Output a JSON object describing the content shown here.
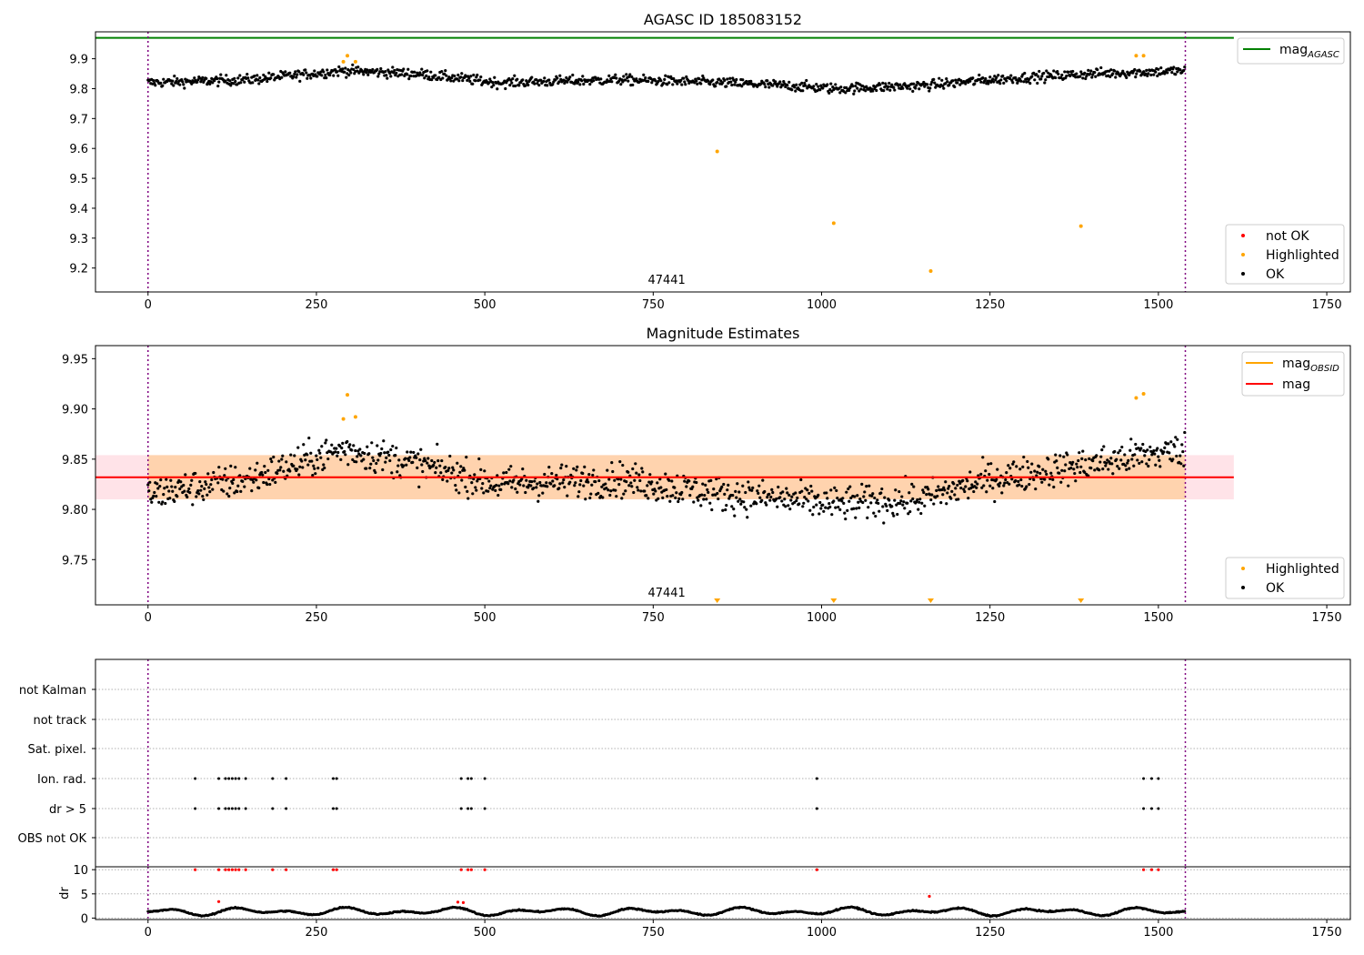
{
  "chart_data": [
    {
      "type": "scatter",
      "title": "AGASC ID 185083152",
      "annotation": "47441",
      "xlim": [
        -78,
        1785
      ],
      "ylim": [
        9.12,
        9.99
      ],
      "xticks": [
        "0",
        "250",
        "500",
        "750",
        "1000",
        "1250",
        "1500",
        "1750"
      ],
      "xtick_values": [
        0,
        250,
        500,
        750,
        1000,
        1250,
        1500,
        1750
      ],
      "yticks": [
        "9.2",
        "9.3",
        "9.4",
        "9.5",
        "9.6",
        "9.7",
        "9.8",
        "9.9"
      ],
      "ytick_values": [
        9.2,
        9.3,
        9.4,
        9.5,
        9.6,
        9.7,
        9.8,
        9.9
      ],
      "vlines": [
        0,
        1540
      ],
      "hline": {
        "y": 9.97,
        "x_end": 1612,
        "color": "#008000"
      },
      "line_legend": [
        {
          "label": "mag",
          "sub": "AGASC",
          "color": "#008000"
        }
      ],
      "scatter_legend": [
        {
          "label": "not OK",
          "color": "#ff0000"
        },
        {
          "label": "Highlighted",
          "color": "#ffa500"
        },
        {
          "label": "OK",
          "color": "#000000"
        }
      ],
      "series": [
        {
          "name": "OK",
          "color": "#000000",
          "trend": [
            [
              0,
              9.82
            ],
            [
              150,
              9.83
            ],
            [
              290,
              9.86
            ],
            [
              400,
              9.85
            ],
            [
              520,
              9.82
            ],
            [
              700,
              9.83
            ],
            [
              850,
              9.82
            ],
            [
              950,
              9.81
            ],
            [
              1020,
              9.8
            ],
            [
              1150,
              9.81
            ],
            [
              1250,
              9.83
            ],
            [
              1400,
              9.85
            ],
            [
              1540,
              9.86
            ]
          ],
          "spread": 0.04
        },
        {
          "name": "Highlighted",
          "color": "#ffa500",
          "points": [
            [
              290,
              9.89
            ],
            [
              296,
              9.91
            ],
            [
              308,
              9.89
            ],
            [
              845,
              9.59
            ],
            [
              1018,
              9.35
            ],
            [
              1162,
              9.19
            ],
            [
              1385,
              9.34
            ],
            [
              1467,
              9.91
            ],
            [
              1478,
              9.91
            ]
          ]
        },
        {
          "name": "not OK",
          "color": "#ff0000",
          "points": []
        }
      ]
    },
    {
      "type": "scatter",
      "title": "Magnitude Estimates",
      "annotation": "47441",
      "xlim": [
        -78,
        1785
      ],
      "ylim": [
        9.705,
        9.963
      ],
      "xticks": [
        "0",
        "250",
        "500",
        "750",
        "1000",
        "1250",
        "1500",
        "1750"
      ],
      "xtick_values": [
        0,
        250,
        500,
        750,
        1000,
        1250,
        1500,
        1750
      ],
      "yticks": [
        "9.75",
        "9.80",
        "9.85",
        "9.90",
        "9.95"
      ],
      "ytick_values": [
        9.75,
        9.8,
        9.85,
        9.9,
        9.95
      ],
      "vlines": [
        0,
        1540
      ],
      "mag": 9.832,
      "mag_band": [
        9.81,
        9.854
      ],
      "mag_x_end": 1612,
      "line_legend": [
        {
          "label": "mag",
          "sub": "OBSID",
          "color": "#ffa500"
        },
        {
          "label": "mag",
          "sub": "",
          "color": "#ff0000"
        }
      ],
      "scatter_legend": [
        {
          "label": "Highlighted",
          "color": "#ffa500"
        },
        {
          "label": "OK",
          "color": "#000000"
        }
      ],
      "series": [
        {
          "name": "OK",
          "color": "#000000",
          "trend": [
            [
              0,
              9.815
            ],
            [
              150,
              9.83
            ],
            [
              290,
              9.86
            ],
            [
              400,
              9.845
            ],
            [
              520,
              9.825
            ],
            [
              700,
              9.83
            ],
            [
              850,
              9.815
            ],
            [
              950,
              9.81
            ],
            [
              1020,
              9.805
            ],
            [
              1150,
              9.81
            ],
            [
              1250,
              9.83
            ],
            [
              1400,
              9.845
            ],
            [
              1540,
              9.86
            ]
          ],
          "spread": 0.04
        },
        {
          "name": "Highlighted",
          "color": "#ffa500",
          "points": [
            [
              290,
              9.89
            ],
            [
              296,
              9.914
            ],
            [
              308,
              9.892
            ],
            [
              1467,
              9.911
            ],
            [
              1478,
              9.915
            ]
          ]
        }
      ],
      "offscale_low_markers": [
        845,
        1018,
        1162,
        1385
      ]
    },
    {
      "type": "scatter",
      "title": "",
      "xlim": [
        -78,
        1785
      ],
      "vlines": [
        0,
        1540
      ],
      "flag_rows": [
        "not Kalman",
        "not track",
        "Sat. pixel.",
        "Ion. rad.",
        "dr > 5",
        "OBS not OK"
      ],
      "flag_points": {
        "not Kalman": [],
        "not track": [],
        "Sat. pixel.": [],
        "Ion. rad.": [
          70,
          105,
          115,
          120,
          125,
          130,
          135,
          145,
          185,
          205,
          275,
          280,
          465,
          475,
          480,
          500,
          993,
          1478,
          1490,
          1500
        ],
        "dr > 5": [
          70,
          105,
          115,
          120,
          125,
          130,
          135,
          145,
          185,
          205,
          275,
          280,
          465,
          475,
          480,
          500,
          993,
          1478,
          1490,
          1500
        ],
        "OBS not OK": []
      }
    },
    {
      "type": "scatter",
      "title": "",
      "ylabel": "dr",
      "xlim": [
        -78,
        1785
      ],
      "ylim": [
        -0.3,
        10.6
      ],
      "xticks": [
        "0",
        "250",
        "500",
        "750",
        "1000",
        "1250",
        "1500",
        "1750"
      ],
      "xtick_values": [
        0,
        250,
        500,
        750,
        1000,
        1250,
        1500,
        1750
      ],
      "yticks": [
        "0",
        "5",
        "10"
      ],
      "ytick_values": [
        0,
        5,
        10
      ],
      "vlines": [
        0,
        1540
      ],
      "series": [
        {
          "name": "OK",
          "color": "#000000",
          "baseline": 1.0,
          "spread": 1.6
        },
        {
          "name": "not OK",
          "color": "#ff0000",
          "points": [
            [
              70,
              10
            ],
            [
              105,
              10
            ],
            [
              115,
              10
            ],
            [
              120,
              10
            ],
            [
              125,
              10
            ],
            [
              130,
              10
            ],
            [
              135,
              10
            ],
            [
              145,
              10
            ],
            [
              185,
              10
            ],
            [
              205,
              10
            ],
            [
              275,
              10
            ],
            [
              280,
              10
            ],
            [
              465,
              10
            ],
            [
              475,
              10
            ],
            [
              480,
              10
            ],
            [
              500,
              10
            ],
            [
              993,
              10
            ],
            [
              1478,
              10
            ],
            [
              1490,
              10
            ],
            [
              1500,
              10
            ],
            [
              105,
              3.4
            ],
            [
              460,
              3.3
            ],
            [
              468,
              3.2
            ],
            [
              1160,
              4.5
            ]
          ]
        }
      ]
    }
  ]
}
